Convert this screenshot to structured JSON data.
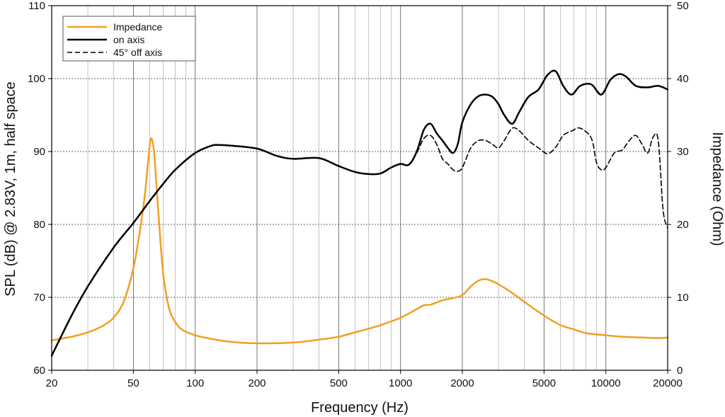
{
  "chart_data": {
    "type": "line",
    "xlabel": "Frequency (Hz)",
    "ylabel": "SPL (dB) @ 2.83V, 1m, half space",
    "y2label": "Impedance (Ohm)",
    "xscale": "log",
    "xlim": [
      20,
      20000
    ],
    "ylim": [
      60,
      110
    ],
    "y2lim": [
      0,
      50
    ],
    "grid": true,
    "legend_position": "top-left",
    "x_ticks": [
      "20",
      "50",
      "100",
      "200",
      "500",
      "1000",
      "2000",
      "5000",
      "10000",
      "20000"
    ],
    "y_ticks": [
      "60",
      "70",
      "80",
      "90",
      "100",
      "110"
    ],
    "y2_ticks": [
      "0",
      "10",
      "20",
      "30",
      "40",
      "50"
    ],
    "series": [
      {
        "name": "Impedance",
        "axis": "right",
        "color": "#f0a020",
        "style": "solid",
        "x": [
          20,
          25,
          30,
          35,
          40,
          45,
          50,
          53,
          56,
          58,
          60,
          61,
          62,
          63,
          64,
          66,
          68,
          70,
          73,
          76,
          80,
          85,
          90,
          100,
          120,
          150,
          200,
          300,
          400,
          500,
          600,
          700,
          800,
          900,
          1000,
          1100,
          1200,
          1300,
          1400,
          1500,
          1600,
          1800,
          2000,
          2200,
          2400,
          2600,
          2800,
          3000,
          3500,
          4000,
          5000,
          6000,
          7000,
          8000,
          10000,
          12000,
          15000,
          18000,
          20000
        ],
        "y": [
          4.1,
          4.6,
          5.2,
          6.0,
          7.2,
          9.5,
          14.0,
          18.0,
          22.5,
          26.5,
          30.8,
          31.8,
          31.3,
          30.0,
          27.5,
          22.0,
          17.0,
          13.0,
          9.7,
          7.8,
          6.6,
          5.7,
          5.3,
          4.8,
          4.3,
          3.9,
          3.7,
          3.8,
          4.2,
          4.6,
          5.2,
          5.7,
          6.2,
          6.7,
          7.2,
          7.8,
          8.4,
          8.9,
          9.0,
          9.3,
          9.6,
          9.9,
          10.3,
          11.5,
          12.3,
          12.5,
          12.2,
          11.8,
          10.6,
          9.4,
          7.5,
          6.2,
          5.6,
          5.1,
          4.8,
          4.6,
          4.5,
          4.4,
          4.5
        ]
      },
      {
        "name": "on axis",
        "axis": "left",
        "color": "#000000",
        "style": "solid",
        "x": [
          20,
          25,
          30,
          40,
          50,
          60,
          70,
          80,
          100,
          120,
          130,
          150,
          200,
          250,
          300,
          400,
          500,
          600,
          700,
          800,
          900,
          1000,
          1100,
          1200,
          1300,
          1400,
          1500,
          1600,
          1700,
          1800,
          1900,
          2000,
          2200,
          2400,
          2600,
          2800,
          3000,
          3200,
          3500,
          3800,
          4200,
          4700,
          5200,
          5700,
          6200,
          6800,
          7500,
          8500,
          9500,
          10500,
          11500,
          12500,
          14000,
          16000,
          18000,
          20000
        ],
        "y": [
          62.0,
          67.5,
          71.5,
          76.8,
          80.2,
          83.2,
          85.6,
          87.5,
          89.8,
          90.8,
          90.9,
          90.8,
          90.4,
          89.4,
          89.0,
          89.1,
          88.0,
          87.2,
          86.9,
          87.0,
          87.8,
          88.3,
          88.2,
          90.0,
          93.0,
          93.8,
          92.5,
          91.5,
          90.5,
          89.8,
          91.0,
          94.0,
          96.5,
          97.6,
          97.8,
          97.5,
          96.5,
          95.0,
          93.8,
          95.5,
          97.5,
          98.5,
          100.5,
          101.0,
          99.0,
          97.8,
          99.0,
          99.2,
          97.8,
          99.8,
          100.6,
          100.3,
          99.0,
          98.8,
          99.0,
          98.5
        ]
      },
      {
        "name": "45° off axis",
        "axis": "left",
        "color": "#000000",
        "style": "dashed",
        "x": [
          1000,
          1100,
          1200,
          1300,
          1400,
          1500,
          1600,
          1700,
          1800,
          1900,
          2000,
          2200,
          2400,
          2600,
          2800,
          3000,
          3200,
          3500,
          3800,
          4200,
          4700,
          5200,
          5700,
          6200,
          6800,
          7500,
          8500,
          9000,
          9500,
          10000,
          11000,
          12000,
          13000,
          14000,
          15000,
          16000,
          17000,
          18000,
          19000,
          20000
        ],
        "y": [
          88.3,
          88.2,
          89.8,
          91.8,
          92.2,
          91.0,
          89.0,
          88.3,
          87.5,
          87.3,
          87.8,
          90.5,
          91.5,
          91.5,
          91.0,
          90.5,
          91.5,
          93.2,
          92.8,
          91.5,
          90.5,
          89.7,
          90.6,
          92.2,
          92.8,
          93.2,
          91.8,
          88.5,
          87.5,
          87.8,
          89.8,
          90.2,
          91.5,
          92.2,
          91.0,
          89.8,
          92.0,
          91.5,
          82.0,
          79.5
        ]
      }
    ]
  }
}
